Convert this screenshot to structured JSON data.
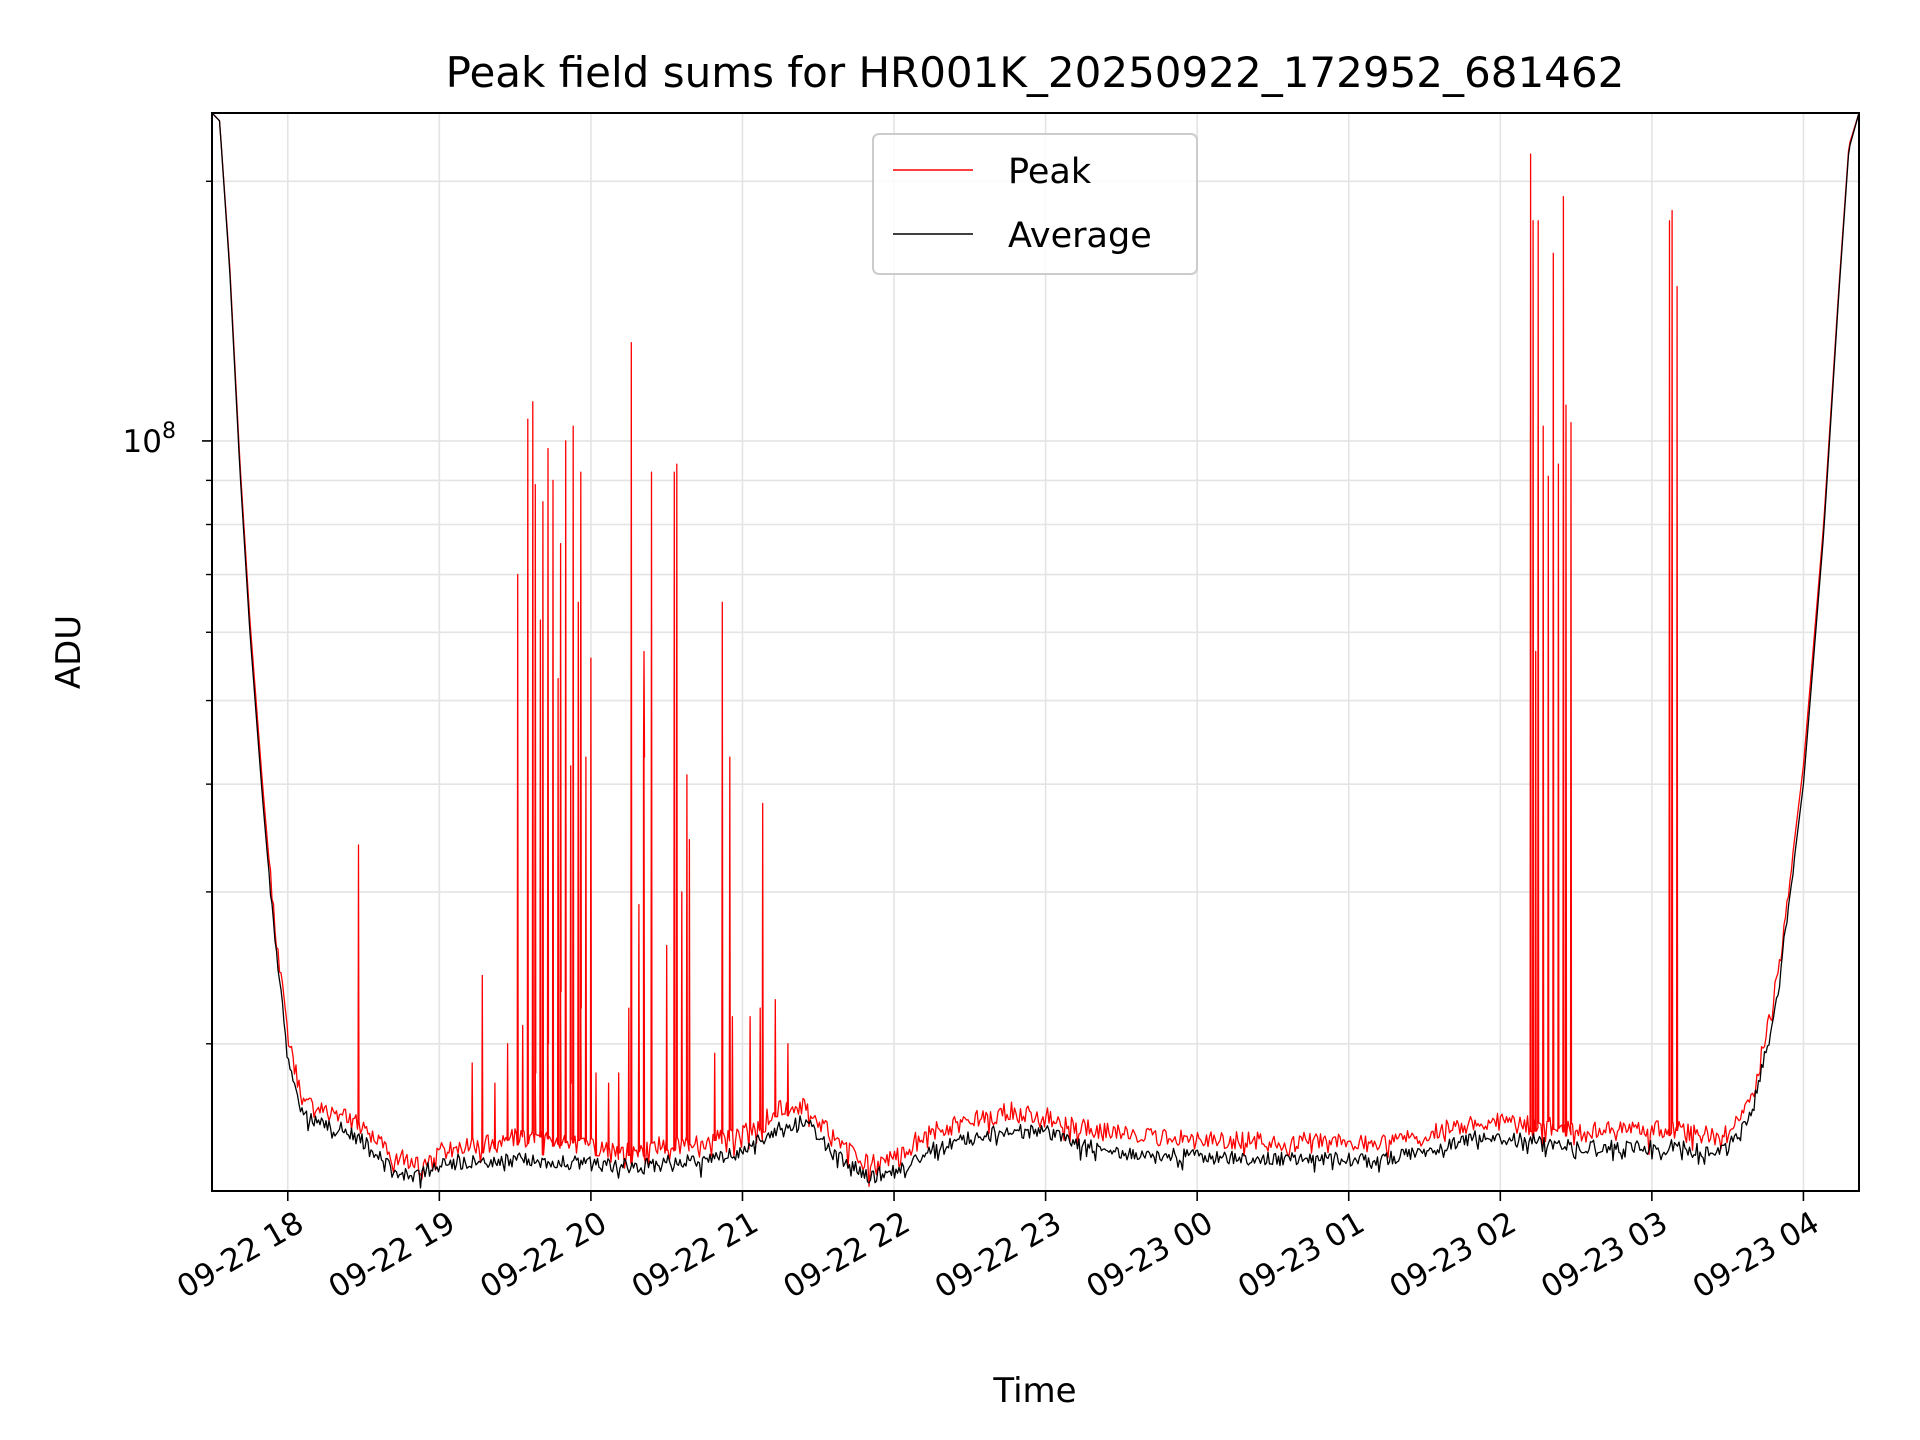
{
  "chart_data": {
    "type": "line",
    "title": "Peak field sums for HR001K_20250922_172952_681462",
    "xlabel": "Time",
    "ylabel": "ADU",
    "y_scale": "log",
    "ylim": [
      13500000,
      240000000
    ],
    "xlim": [
      "2025-09-22 17:30",
      "2025-09-23 04:22"
    ],
    "grid": true,
    "legend_position": "top-center",
    "x_ticks": [
      "09-22 18",
      "09-22 19",
      "09-22 20",
      "09-22 21",
      "09-22 22",
      "09-22 23",
      "09-23 00",
      "09-23 01",
      "09-23 02",
      "09-23 03",
      "09-23 04"
    ],
    "y_ticks": [
      {
        "label": "10",
        "exponent": "8",
        "value": 100000000
      }
    ],
    "series": [
      {
        "name": "Peak",
        "color": "#ff0000",
        "baseline": [
          [
            "2025-09-22 17:30",
            240000000
          ],
          [
            "2025-09-22 17:33",
            235000000
          ],
          [
            "2025-09-22 17:37",
            160000000
          ],
          [
            "2025-09-22 17:41",
            95000000
          ],
          [
            "2025-09-22 17:45",
            62000000
          ],
          [
            "2025-09-22 17:50",
            40000000
          ],
          [
            "2025-09-22 17:55",
            27000000
          ],
          [
            "2025-09-22 18:00",
            20500000
          ],
          [
            "2025-09-22 18:05",
            17500000
          ],
          [
            "2025-09-22 18:10",
            16800000
          ],
          [
            "2025-09-22 18:20",
            16600000
          ],
          [
            "2025-09-22 18:30",
            16000000
          ],
          [
            "2025-09-22 18:40",
            15000000
          ],
          [
            "2025-09-22 18:50",
            14500000
          ],
          [
            "2025-09-22 19:00",
            15000000
          ],
          [
            "2025-09-22 19:15",
            15300000
          ],
          [
            "2025-09-22 19:30",
            15600000
          ],
          [
            "2025-09-22 19:45",
            15400000
          ],
          [
            "2025-09-22 20:00",
            15200000
          ],
          [
            "2025-09-22 20:15",
            15000000
          ],
          [
            "2025-09-22 20:30",
            15300000
          ],
          [
            "2025-09-22 20:45",
            15400000
          ],
          [
            "2025-09-22 21:00",
            15700000
          ],
          [
            "2025-09-22 21:15",
            16800000
          ],
          [
            "2025-09-22 21:25",
            17000000
          ],
          [
            "2025-09-22 21:35",
            15700000
          ],
          [
            "2025-09-22 21:50",
            14500000
          ],
          [
            "2025-09-22 22:00",
            14700000
          ],
          [
            "2025-09-22 22:15",
            15800000
          ],
          [
            "2025-09-22 22:30",
            16300000
          ],
          [
            "2025-09-22 22:45",
            16600000
          ],
          [
            "2025-09-22 23:00",
            16500000
          ],
          [
            "2025-09-22 23:15",
            16000000
          ],
          [
            "2025-09-22 23:30",
            15700000
          ],
          [
            "2025-09-22 23:45",
            15600000
          ],
          [
            "2025-09-23 00:00",
            15500000
          ],
          [
            "2025-09-23 00:30",
            15400000
          ],
          [
            "2025-09-23 00:50",
            15500000
          ],
          [
            "2025-09-23 01:10",
            15300000
          ],
          [
            "2025-09-23 01:30",
            15700000
          ],
          [
            "2025-09-23 01:50",
            16300000
          ],
          [
            "2025-09-23 02:10",
            16200000
          ],
          [
            "2025-09-23 02:30",
            15900000
          ],
          [
            "2025-09-23 02:50",
            15900000
          ],
          [
            "2025-09-23 03:10",
            15900000
          ],
          [
            "2025-09-23 03:20",
            15700000
          ],
          [
            "2025-09-23 03:30",
            15800000
          ],
          [
            "2025-09-23 03:40",
            17500000
          ],
          [
            "2025-09-23 03:50",
            24000000
          ],
          [
            "2025-09-23 04:00",
            42000000
          ],
          [
            "2025-09-23 04:08",
            80000000
          ],
          [
            "2025-09-23 04:14",
            150000000
          ],
          [
            "2025-09-23 04:18",
            220000000
          ],
          [
            "2025-09-23 04:22",
            240000000
          ]
        ],
        "spikes": [
          [
            "2025-09-22 18:28",
            34000000
          ],
          [
            "2025-09-22 19:13",
            19000000
          ],
          [
            "2025-09-22 19:17",
            24000000
          ],
          [
            "2025-09-22 19:22",
            18000000
          ],
          [
            "2025-09-22 19:27",
            20000000
          ],
          [
            "2025-09-22 19:33",
            21000000
          ],
          [
            "2025-09-22 19:38",
            18500000
          ],
          [
            "2025-09-22 19:43",
            20000000
          ],
          [
            "2025-09-22 19:48",
            23000000
          ],
          [
            "2025-09-22 19:52",
            18000000
          ],
          [
            "2025-09-22 19:56",
            22000000
          ],
          [
            "2025-09-22 20:02",
            18500000
          ],
          [
            "2025-09-22 20:07",
            18000000
          ],
          [
            "2025-09-22 20:11",
            18500000
          ],
          [
            "2025-09-22 20:15",
            22000000
          ],
          [
            "2025-09-22 20:19",
            29000000
          ],
          [
            "2025-09-22 20:21",
            43000000
          ],
          [
            "2025-09-22 20:30",
            26000000
          ],
          [
            "2025-09-22 20:36",
            30000000
          ],
          [
            "2025-09-22 20:39",
            34500000
          ],
          [
            "2025-09-22 20:49",
            19500000
          ],
          [
            "2025-09-22 20:56",
            21500000
          ],
          [
            "2025-09-22 21:03",
            21500000
          ],
          [
            "2025-09-22 21:07",
            22000000
          ],
          [
            "2025-09-22 21:13",
            22500000
          ],
          [
            "2025-09-22 21:18",
            20000000
          ]
        ],
        "peak_events": [
          [
            "2025-09-22 19:31",
            70000000
          ],
          [
            "2025-09-22 19:35",
            106000000
          ],
          [
            "2025-09-22 19:37",
            111000000
          ],
          [
            "2025-09-22 19:38",
            89000000
          ],
          [
            "2025-09-22 19:40",
            62000000
          ],
          [
            "2025-09-22 19:41",
            85000000
          ],
          [
            "2025-09-22 19:43",
            98000000
          ],
          [
            "2025-09-22 19:45",
            90000000
          ],
          [
            "2025-09-22 19:47",
            53000000
          ],
          [
            "2025-09-22 19:48",
            76000000
          ],
          [
            "2025-09-22 19:50",
            100000000
          ],
          [
            "2025-09-22 19:52",
            42000000
          ],
          [
            "2025-09-22 19:53",
            104000000
          ],
          [
            "2025-09-22 19:55",
            65000000
          ],
          [
            "2025-09-22 19:56",
            92000000
          ],
          [
            "2025-09-22 19:58",
            43000000
          ],
          [
            "2025-09-22 20:00",
            56000000
          ],
          [
            "2025-09-22 20:16",
            130000000
          ],
          [
            "2025-09-22 20:21",
            57000000
          ],
          [
            "2025-09-22 20:24",
            92000000
          ],
          [
            "2025-09-22 20:33",
            92000000
          ],
          [
            "2025-09-22 20:34",
            94000000
          ],
          [
            "2025-09-22 20:38",
            41000000
          ],
          [
            "2025-09-22 20:52",
            65000000
          ],
          [
            "2025-09-22 20:55",
            43000000
          ],
          [
            "2025-09-22 21:08",
            38000000
          ],
          [
            "2025-09-23 02:12",
            215000000
          ],
          [
            "2025-09-23 02:13",
            180000000
          ],
          [
            "2025-09-23 02:14",
            57000000
          ],
          [
            "2025-09-23 02:15",
            180000000
          ],
          [
            "2025-09-23 02:17",
            104000000
          ],
          [
            "2025-09-23 02:19",
            91000000
          ],
          [
            "2025-09-23 02:21",
            165000000
          ],
          [
            "2025-09-23 02:23",
            94000000
          ],
          [
            "2025-09-23 02:25",
            192000000
          ],
          [
            "2025-09-23 02:26",
            110000000
          ],
          [
            "2025-09-23 02:28",
            105000000
          ],
          [
            "2025-09-23 03:07",
            180000000
          ],
          [
            "2025-09-23 03:08",
            185000000
          ],
          [
            "2025-09-23 03:10",
            151000000
          ]
        ]
      },
      {
        "name": "Average",
        "color": "#000000",
        "baseline": [
          [
            "2025-09-22 17:30",
            240000000
          ],
          [
            "2025-09-22 17:33",
            235000000
          ],
          [
            "2025-09-22 17:37",
            158000000
          ],
          [
            "2025-09-22 17:41",
            93000000
          ],
          [
            "2025-09-22 17:45",
            60000000
          ],
          [
            "2025-09-22 17:50",
            38500000
          ],
          [
            "2025-09-22 17:55",
            26000000
          ],
          [
            "2025-09-22 18:00",
            19500000
          ],
          [
            "2025-09-22 18:05",
            16800000
          ],
          [
            "2025-09-22 18:10",
            16200000
          ],
          [
            "2025-09-22 18:20",
            16000000
          ],
          [
            "2025-09-22 18:30",
            15400000
          ],
          [
            "2025-09-22 18:40",
            14500000
          ],
          [
            "2025-09-22 18:50",
            14100000
          ],
          [
            "2025-09-22 19:00",
            14500000
          ],
          [
            "2025-09-22 19:15",
            14600000
          ],
          [
            "2025-09-22 19:30",
            14700000
          ],
          [
            "2025-09-22 19:45",
            14600000
          ],
          [
            "2025-09-22 20:00",
            14500000
          ],
          [
            "2025-09-22 20:15",
            14400000
          ],
          [
            "2025-09-22 20:30",
            14600000
          ],
          [
            "2025-09-22 20:45",
            14700000
          ],
          [
            "2025-09-22 21:00",
            15000000
          ],
          [
            "2025-09-22 21:15",
            16000000
          ],
          [
            "2025-09-22 21:25",
            16300000
          ],
          [
            "2025-09-22 21:35",
            15000000
          ],
          [
            "2025-09-22 21:50",
            14000000
          ],
          [
            "2025-09-22 22:00",
            14200000
          ],
          [
            "2025-09-22 22:15",
            15100000
          ],
          [
            "2025-09-22 22:30",
            15600000
          ],
          [
            "2025-09-22 22:45",
            15900000
          ],
          [
            "2025-09-22 23:00",
            15800000
          ],
          [
            "2025-09-22 23:15",
            15300000
          ],
          [
            "2025-09-22 23:30",
            15000000
          ],
          [
            "2025-09-22 23:45",
            14900000
          ],
          [
            "2025-09-23 00:00",
            14800000
          ],
          [
            "2025-09-23 00:30",
            14700000
          ],
          [
            "2025-09-23 00:50",
            14800000
          ],
          [
            "2025-09-23 01:10",
            14600000
          ],
          [
            "2025-09-23 01:30",
            15000000
          ],
          [
            "2025-09-23 01:50",
            15600000
          ],
          [
            "2025-09-23 02:10",
            15500000
          ],
          [
            "2025-09-23 02:30",
            15200000
          ],
          [
            "2025-09-23 02:50",
            15200000
          ],
          [
            "2025-09-23 03:10",
            15200000
          ],
          [
            "2025-09-23 03:20",
            15000000
          ],
          [
            "2025-09-23 03:30",
            15100000
          ],
          [
            "2025-09-23 03:40",
            16800000
          ],
          [
            "2025-09-23 03:50",
            23000000
          ],
          [
            "2025-09-23 04:00",
            40000000
          ],
          [
            "2025-09-23 04:08",
            78000000
          ],
          [
            "2025-09-23 04:14",
            148000000
          ],
          [
            "2025-09-23 04:18",
            218000000
          ],
          [
            "2025-09-23 04:22",
            240000000
          ]
        ]
      }
    ]
  }
}
